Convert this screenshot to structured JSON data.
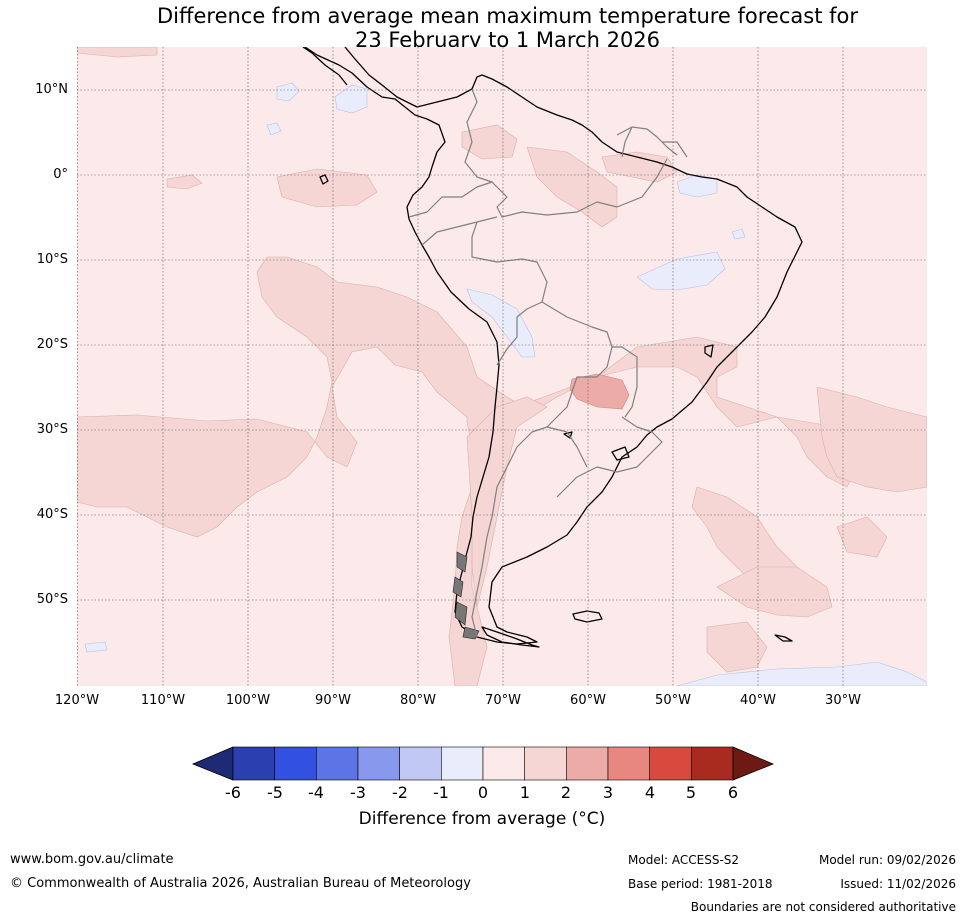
{
  "title": {
    "line1": "Difference from average mean maximum temperature forecast for",
    "line2": "23 February to 1 March 2026"
  },
  "map": {
    "lat_labels": [
      "10°N",
      "0°",
      "10°S",
      "20°S",
      "30°S",
      "40°S",
      "50°S"
    ],
    "lon_labels": [
      "120°W",
      "110°W",
      "100°W",
      "90°W",
      "80°W",
      "70°W",
      "60°W",
      "50°W",
      "40°W",
      "30°W"
    ],
    "background_color": "#fbeae9",
    "anomaly_1_2_color": "#f5d6d4",
    "anomaly_2_3_color": "#ecaba7",
    "anomaly_neg1_0_color": "#e9ecfb",
    "land_outline_color": "#000000",
    "border_color": "#808080"
  },
  "colorbar": {
    "ticks": [
      "-6",
      "-5",
      "-4",
      "-3",
      "-2",
      "-1",
      "0",
      "1",
      "2",
      "3",
      "4",
      "5",
      "6"
    ],
    "colors": [
      "#1e2a76",
      "#2b3fb0",
      "#3251e0",
      "#5d74e6",
      "#8898ec",
      "#c1c8f4",
      "#e9ecfb",
      "#fbeae9",
      "#f5d6d4",
      "#ecaba7",
      "#e88780",
      "#d94a3e",
      "#a92b20",
      "#6e1a14"
    ],
    "label": "Difference from average (°C)"
  },
  "footer": {
    "website": "www.bom.gov.au/climate",
    "copyright": "© Commonwealth of Australia 2026, Australian Bureau of Meteorology",
    "model": "Model: ACCESS-S2",
    "base_period": "Base period: 1981-2018",
    "model_run": "Model run: 09/02/2026",
    "issued": "Issued: 11/02/2026",
    "disclaimer": "Boundaries are not considered authoritative"
  }
}
